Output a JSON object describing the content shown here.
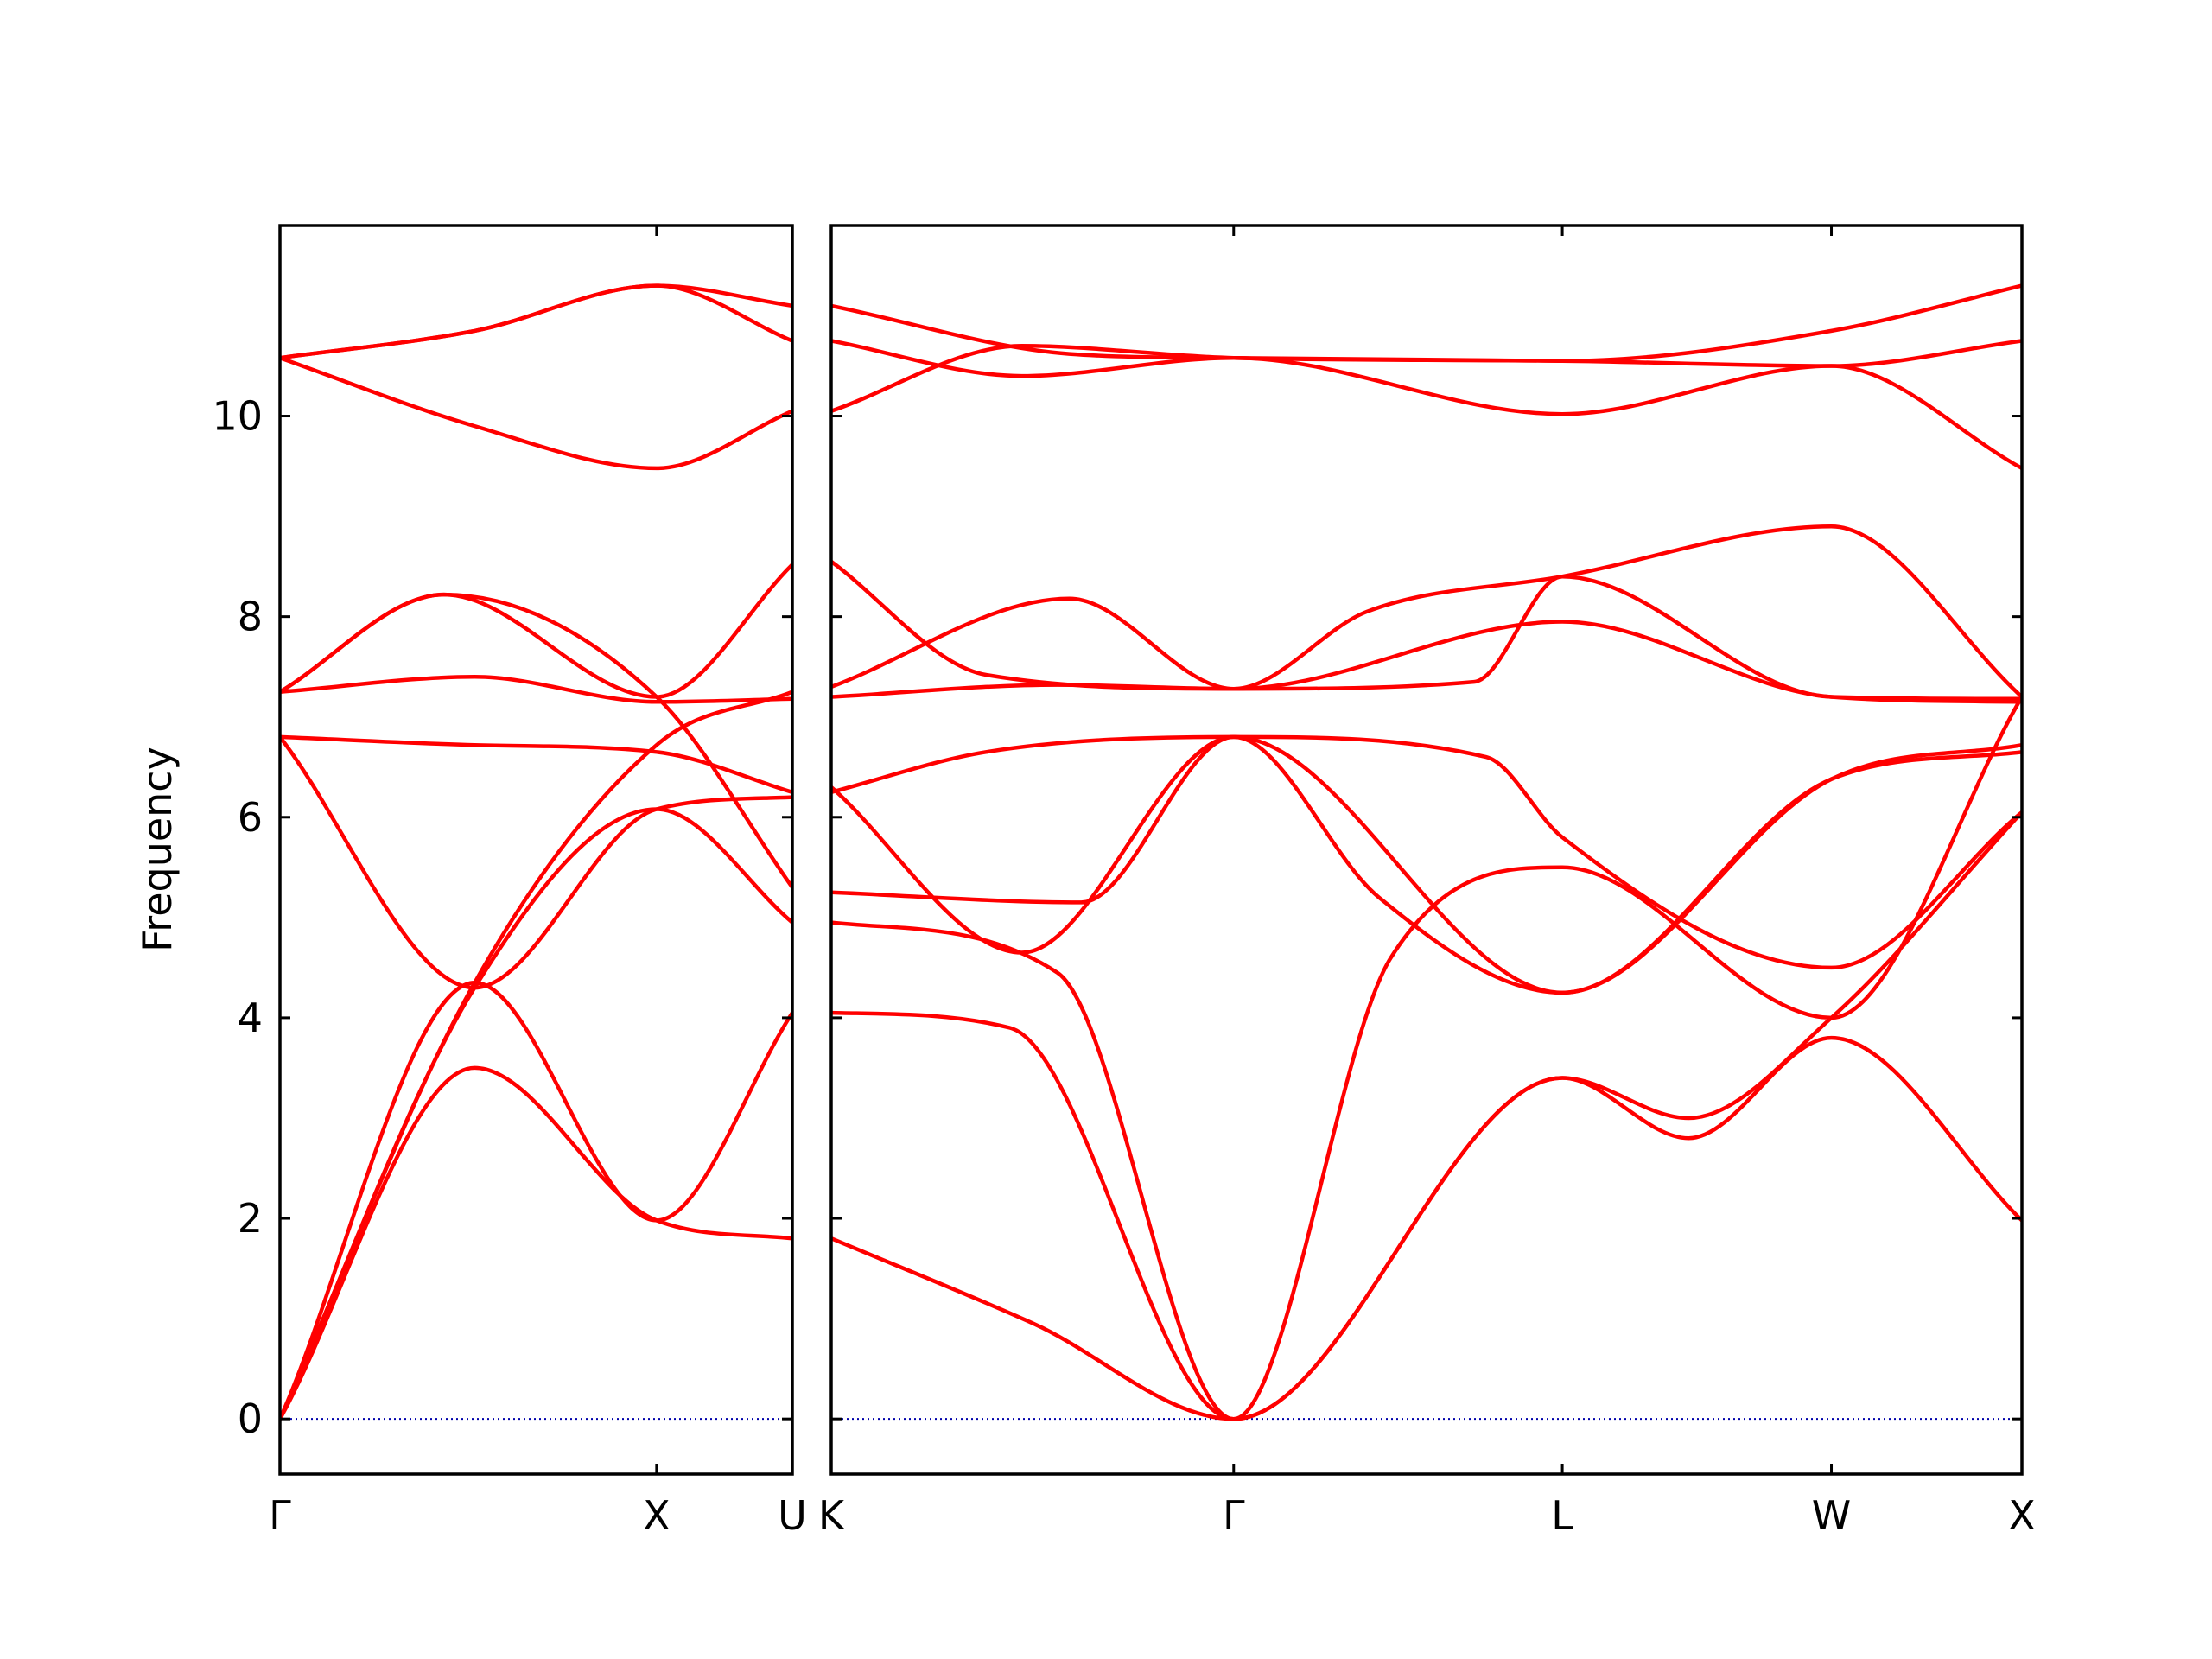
{
  "chart_data": {
    "type": "line",
    "title": "",
    "ylabel": "Frequency",
    "ylim": [
      -0.55,
      11.9
    ],
    "yticks": [
      0,
      2,
      4,
      6,
      8,
      10
    ],
    "band_color": "#ff0000",
    "zero_line_color": "#0000aa",
    "panels": [
      {
        "xlim": [
          0,
          1.0
        ],
        "xticks": [
          {
            "x": 0,
            "label": "Γ"
          },
          {
            "x": 0.735,
            "label": "X"
          }
        ],
        "edge_label_right": "U",
        "series": [
          {
            "x": [
              0,
              0.38,
              0.735,
              1.0
            ],
            "values": [
              0,
              3.5,
              1.98,
              1.8
            ]
          },
          {
            "x": [
              0,
              0.38,
              0.735,
              1.0
            ],
            "values": [
              0,
              4.35,
              1.98,
              4.05
            ]
          },
          {
            "x": [
              0,
              0.38,
              0.735,
              1.0
            ],
            "values": [
              0,
              4.3,
              6.08,
              4.95
            ]
          },
          {
            "x": [
              0,
              0.38,
              0.735,
              1.0
            ],
            "values": [
              6.8,
              4.3,
              6.08,
              6.2
            ]
          },
          {
            "x": [
              0,
              0.38,
              0.735,
              1.0
            ],
            "values": [
              6.8,
              6.72,
              6.65,
              6.25
            ]
          },
          {
            "x": [
              0,
              0.38,
              0.735,
              1.0
            ],
            "values": [
              0,
              4.35,
              6.72,
              7.25
            ]
          },
          {
            "x": [
              0,
              0.38,
              0.735,
              1.0
            ],
            "values": [
              7.25,
              7.4,
              7.15,
              7.18
            ]
          },
          {
            "x": [
              0,
              0.32,
              0.735,
              1.0
            ],
            "values": [
              7.25,
              8.22,
              7.2,
              5.3
            ]
          },
          {
            "x": [
              0,
              0.32,
              0.735,
              1.0
            ],
            "values": [
              7.25,
              8.22,
              7.2,
              8.52
            ]
          },
          {
            "x": [
              0,
              0.38,
              0.735,
              1.0
            ],
            "values": [
              10.58,
              9.9,
              9.48,
              10.05
            ]
          },
          {
            "x": [
              0,
              0.38,
              0.735,
              1.0
            ],
            "values": [
              10.58,
              10.85,
              11.3,
              10.75
            ]
          },
          {
            "x": [
              0,
              0.38,
              0.735,
              1.0
            ],
            "values": [
              10.58,
              10.85,
              11.3,
              11.1
            ]
          }
        ]
      },
      {
        "xlim": [
          0,
          1.0
        ],
        "xticks": [
          {
            "x": 0,
            "label": "K"
          },
          {
            "x": 0.338,
            "label": "Γ"
          },
          {
            "x": 0.614,
            "label": "L"
          },
          {
            "x": 0.84,
            "label": "W"
          },
          {
            "x": 1.0,
            "label": "X"
          }
        ],
        "series": [
          {
            "x": [
              0,
              0.17,
              0.338,
              0.614,
              0.72,
              0.84,
              1.0
            ],
            "values": [
              1.8,
              0.95,
              0,
              3.4,
              2.8,
              3.8,
              1.98
            ]
          },
          {
            "x": [
              0,
              0.15,
              0.338,
              0.614,
              0.72,
              0.84,
              1.0
            ],
            "values": [
              4.05,
              3.9,
              0,
              3.4,
              3.0,
              4.0,
              6.05
            ]
          },
          {
            "x": [
              0,
              0.19,
              0.338,
              0.47,
              0.614,
              0.84,
              1.0
            ],
            "values": [
              4.95,
              4.45,
              0,
              4.6,
              5.5,
              4.0,
              7.2
            ]
          },
          {
            "x": [
              0,
              0.16,
              0.338,
              0.46,
              0.614,
              0.84,
              1.0
            ],
            "values": [
              6.3,
              4.65,
              6.8,
              5.2,
              4.25,
              6.38,
              6.65
            ]
          },
          {
            "x": [
              0,
              0.13,
              0.338,
              0.55,
              0.614,
              0.84,
              1.0
            ],
            "values": [
              6.25,
              6.65,
              6.8,
              6.6,
              5.8,
              4.5,
              6.05
            ]
          },
          {
            "x": [
              0,
              0.21,
              0.338,
              0.614,
              0.84,
              1.0
            ],
            "values": [
              5.25,
              5.15,
              6.8,
              4.25,
              6.38,
              6.72
            ]
          },
          {
            "x": [
              0,
              0.19,
              0.338,
              0.614,
              0.84,
              1.0
            ],
            "values": [
              7.2,
              7.32,
              7.28,
              7.95,
              7.2,
              7.15
            ]
          },
          {
            "x": [
              0,
              0.13,
              0.338,
              0.54,
              0.614,
              0.84,
              1.0
            ],
            "values": [
              8.55,
              7.42,
              7.28,
              7.35,
              8.4,
              7.2,
              7.18
            ]
          },
          {
            "x": [
              0,
              0.2,
              0.338,
              0.45,
              0.614,
              0.84,
              1.0
            ],
            "values": [
              7.3,
              8.18,
              7.28,
              8.05,
              8.4,
              8.9,
              7.2
            ]
          },
          {
            "x": [
              0,
              0.2,
              0.338,
              0.614,
              0.84,
              1.0
            ],
            "values": [
              11.1,
              10.62,
              10.58,
              10.55,
              10.85,
              11.3
            ]
          },
          {
            "x": [
              0,
              0.16,
              0.338,
              0.614,
              0.84,
              1.0
            ],
            "values": [
              10.75,
              10.4,
              10.58,
              10.02,
              10.5,
              9.48
            ]
          },
          {
            "x": [
              0,
              0.16,
              0.338,
              0.614,
              0.84,
              1.0
            ],
            "values": [
              10.05,
              10.7,
              10.58,
              10.55,
              10.5,
              10.75
            ]
          }
        ]
      }
    ]
  }
}
